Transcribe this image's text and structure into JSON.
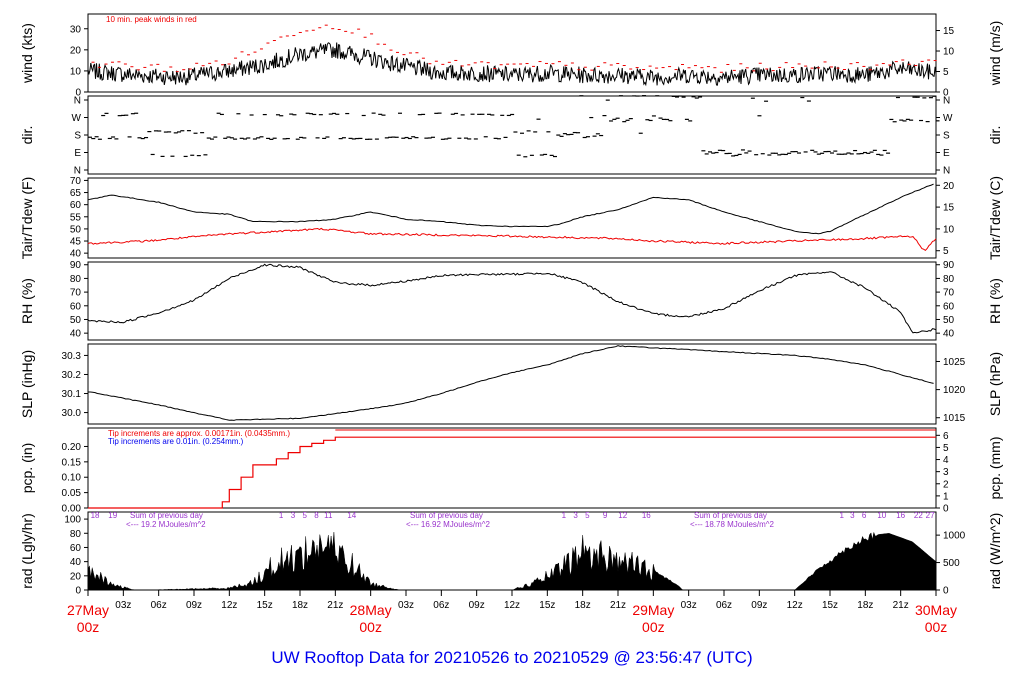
{
  "footer_title": "UW Rooftop Data for 20210526  to  20210529 @ 23:56:47  (UTC)",
  "colors": {
    "accent_red": "#ee0000",
    "accent_blue": "#0000ee",
    "purple": "#9933cc",
    "black": "#000000"
  },
  "x_axis": {
    "hour_ticks": [
      "03z",
      "06z",
      "09z",
      "12z",
      "15z",
      "18z",
      "21z",
      "03z",
      "06z",
      "09z",
      "12z",
      "15z",
      "18z",
      "21z",
      "03z",
      "06z",
      "09z",
      "12z",
      "15z",
      "18z",
      "21z"
    ],
    "day_ticks": [
      {
        "day": "27May",
        "hour": "00z"
      },
      {
        "day": "28May",
        "hour": "00z"
      },
      {
        "day": "29May",
        "hour": "00z"
      },
      {
        "day": "30May",
        "hour": "00z"
      }
    ]
  },
  "panels": {
    "wind": {
      "ylabel_left": "wind (kts)",
      "ylabel_right": "wind (m/s)",
      "left_ticks": [
        "0",
        "10",
        "20",
        "30"
      ],
      "right_ticks": [
        "0",
        "5",
        "10",
        "15"
      ],
      "note": "10 min. peak winds in red"
    },
    "dir": {
      "ylabel_left": "dir.",
      "ylabel_right": "dir.",
      "ticks": [
        "N",
        "W",
        "S",
        "E",
        "N"
      ]
    },
    "temp": {
      "ylabel_left": "Tair/Tdew (F)",
      "ylabel_right": "Tair/Tdew (C)",
      "left_ticks": [
        "40",
        "45",
        "50",
        "55",
        "60",
        "65",
        "70"
      ],
      "right_ticks": [
        "5",
        "10",
        "15",
        "20"
      ]
    },
    "rh": {
      "ylabel_left": "RH (%)",
      "ylabel_right": "RH (%)",
      "ticks": [
        "40",
        "50",
        "60",
        "70",
        "80",
        "90"
      ]
    },
    "slp": {
      "ylabel_left": "SLP (inHg)",
      "ylabel_right": "SLP (hPa)",
      "left_ticks": [
        "30.0",
        "30.1",
        "30.2",
        "30.3"
      ],
      "right_ticks": [
        "1015",
        "1020",
        "1025"
      ]
    },
    "pcp": {
      "ylabel_left": "pcp. (in)",
      "ylabel_right": "pcp. (mm)",
      "left_ticks": [
        "0.00",
        "0.05",
        "0.10",
        "0.15",
        "0.20"
      ],
      "right_ticks": [
        "0",
        "1",
        "2",
        "3",
        "4",
        "5",
        "6"
      ],
      "note_red": "Tip increments are approx. 0.00171in. (0.0435mm.)",
      "note_blue": "Tip increments are 0.01in. (0.254mm.)"
    },
    "rad": {
      "ylabel_left": "rad (Lgly/hr)",
      "ylabel_right": "rad (W/m^2)",
      "left_ticks": [
        "0",
        "20",
        "40",
        "60",
        "80",
        "100"
      ],
      "right_ticks": [
        "0",
        "500",
        "1000"
      ],
      "sums": [
        {
          "label": "Sum of previous day",
          "value": "<--- 19.2 MJoules/m^2"
        },
        {
          "label": "Sum of previous day",
          "value": "<--- 16.92 MJoules/m^2"
        },
        {
          "label": "Sum of previous day",
          "value": "<--- 18.78 MJoules/m^2"
        }
      ],
      "hour_marks": [
        [
          "18",
          "19"
        ],
        [
          "1",
          "3",
          "5",
          "8",
          "11",
          "14"
        ],
        [
          "1",
          "3",
          "5",
          "9",
          "12",
          "16"
        ],
        [
          "1",
          "3",
          "6",
          "10",
          "16",
          "22",
          "27"
        ]
      ]
    }
  },
  "chart_data": {
    "type": "line",
    "x_range_hours": [
      0,
      72
    ],
    "x_unit": "hours since 27May 00z",
    "series": [
      {
        "name": "wind",
        "unit": "kts",
        "ylim": [
          0,
          37
        ],
        "x": [
          0,
          4,
          8,
          12,
          15,
          18,
          21,
          24,
          27,
          30,
          33,
          36,
          39,
          42,
          45,
          48,
          51,
          54,
          57,
          60,
          63,
          66,
          69,
          72
        ],
        "y": [
          10,
          8,
          7,
          10,
          13,
          18,
          20,
          16,
          12,
          9,
          9,
          8,
          9,
          8,
          8,
          7,
          8,
          7,
          8,
          8,
          9,
          8,
          11,
          9
        ]
      },
      {
        "name": "10 min. peak winds",
        "unit": "kts",
        "x": [
          0,
          4,
          8,
          12,
          15,
          18,
          21,
          24,
          27,
          30,
          33,
          36,
          39,
          42,
          45,
          48,
          51,
          54,
          57,
          60,
          63,
          66,
          69,
          72
        ],
        "y": [
          14,
          12,
          11,
          15,
          22,
          30,
          32,
          26,
          18,
          13,
          13,
          12,
          13,
          12,
          12,
          11,
          12,
          11,
          12,
          12,
          13,
          12,
          15,
          13
        ]
      },
      {
        "name": "dir",
        "unit": "compass",
        "x": [
          0,
          5,
          10,
          15,
          20,
          24,
          28,
          32,
          36,
          40,
          44,
          48,
          52,
          56,
          60,
          64,
          68,
          72
        ],
        "y": [
          "SW",
          "SE",
          "SW",
          "SW",
          "SW",
          "SW",
          "SW",
          "SW",
          "SE",
          "S",
          "WNW",
          "NW",
          "E",
          "E",
          "E",
          "E",
          "NW",
          "W"
        ]
      },
      {
        "name": "Tair",
        "unit": "F",
        "ylim": [
          38,
          71
        ],
        "x": [
          0,
          2,
          6,
          9,
          12,
          14,
          18,
          21,
          24,
          27,
          30,
          33,
          36,
          39,
          40,
          42,
          45,
          48,
          51,
          54,
          57,
          60,
          62,
          63,
          66,
          69,
          72
        ],
        "y": [
          62,
          64,
          61,
          57,
          56,
          53,
          53,
          54,
          57,
          54,
          53,
          51.5,
          51,
          51,
          52,
          55,
          58,
          63,
          62,
          57,
          53,
          49,
          48,
          49,
          56,
          63,
          69
        ]
      },
      {
        "name": "Tdew",
        "unit": "F",
        "x": [
          0,
          5,
          12,
          20,
          24,
          36,
          45,
          48,
          54,
          60,
          66,
          70,
          71,
          72
        ],
        "y": [
          44,
          45,
          48,
          50,
          48,
          47,
          46,
          45,
          44,
          45,
          46,
          47,
          41,
          46
        ]
      },
      {
        "name": "RH",
        "unit": "%",
        "ylim": [
          35,
          92
        ],
        "x": [
          0,
          3,
          6,
          9,
          12,
          15,
          18,
          21,
          24,
          27,
          30,
          33,
          36,
          39,
          42,
          45,
          48,
          51,
          54,
          57,
          60,
          63,
          66,
          69,
          70,
          72
        ],
        "y": [
          49,
          48,
          55,
          64,
          80,
          90,
          88,
          77,
          75,
          78,
          82,
          83,
          83,
          84,
          77,
          63,
          54,
          52,
          58,
          71,
          82,
          85,
          73,
          55,
          40,
          43
        ]
      },
      {
        "name": "SLP",
        "unit": "inHg",
        "ylim": [
          29.94,
          30.36
        ],
        "x": [
          0,
          6,
          12,
          18,
          24,
          27,
          30,
          33,
          36,
          39,
          42,
          45,
          48,
          51,
          54,
          57,
          60,
          63,
          66,
          69,
          72
        ],
        "y": [
          30.11,
          30.04,
          29.96,
          29.97,
          30.02,
          30.05,
          30.1,
          30.16,
          30.21,
          30.25,
          30.31,
          30.35,
          30.34,
          30.33,
          30.32,
          30.31,
          30.3,
          30.28,
          30.25,
          30.2,
          30.15
        ]
      },
      {
        "name": "pcp",
        "unit": "in",
        "ylim": [
          0,
          0.26
        ],
        "x": [
          0,
          11,
          11.4,
          12,
          13,
          14,
          16,
          17,
          18,
          19,
          20,
          21,
          72
        ],
        "y": [
          0,
          0,
          0.02,
          0.06,
          0.1,
          0.14,
          0.16,
          0.18,
          0.2,
          0.21,
          0.22,
          0.23,
          0.23
        ]
      },
      {
        "name": "rad",
        "unit": "Lgly/hr",
        "ylim": [
          0,
          110
        ],
        "x": [
          0,
          1,
          2,
          4,
          5,
          12,
          14,
          16,
          18,
          20,
          22,
          24,
          26,
          26.5,
          36,
          38,
          40,
          42,
          44,
          46,
          48,
          50,
          50.5,
          60,
          62,
          64,
          66,
          68,
          70,
          72
        ],
        "y": [
          26,
          20,
          8,
          0,
          0,
          3,
          12,
          42,
          55,
          72,
          48,
          10,
          2,
          0,
          0,
          12,
          30,
          60,
          52,
          42,
          28,
          8,
          0,
          0,
          30,
          55,
          76,
          80,
          68,
          40
        ]
      }
    ]
  }
}
